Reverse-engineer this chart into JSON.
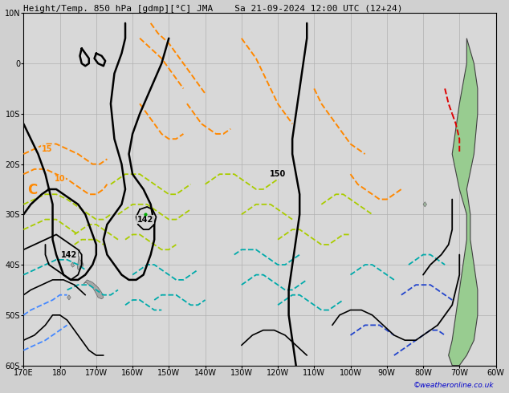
{
  "title": "Height/Temp. 850 hPa [gdmp][°C] JMA",
  "subtitle": "Sa 21-09-2024 12:00 UTC (12+24)",
  "watermark": "©weatheronline.co.uk",
  "bg_color": "#d0d0d0",
  "ocean_color": "#d8d8d8",
  "land_color_nz": "#a0a0a0",
  "land_color_sa": "#90c890",
  "grid_color": "#b0b0b0",
  "title_fontsize": 8,
  "axis_fontsize": 7,
  "lon_min": -190,
  "lon_max": -60,
  "lat_min": -60,
  "lat_max": 10,
  "lon_ticks": [
    -190,
    -180,
    -170,
    -160,
    -150,
    -140,
    -130,
    -120,
    -110,
    -100,
    -90,
    -80,
    -70,
    -60
  ],
  "lat_ticks": [
    -60,
    -50,
    -40,
    -30,
    -20,
    -10,
    0,
    10
  ],
  "lon_labels": [
    "170E",
    "180",
    "170W",
    "160W",
    "150W",
    "140W",
    "130W",
    "120W",
    "110W",
    "100W",
    "90W",
    "80W",
    "70W",
    "60W"
  ],
  "lat_labels": [
    "60S",
    "50S",
    "40S",
    "30S",
    "20S",
    "10S",
    "0",
    "10N"
  ]
}
